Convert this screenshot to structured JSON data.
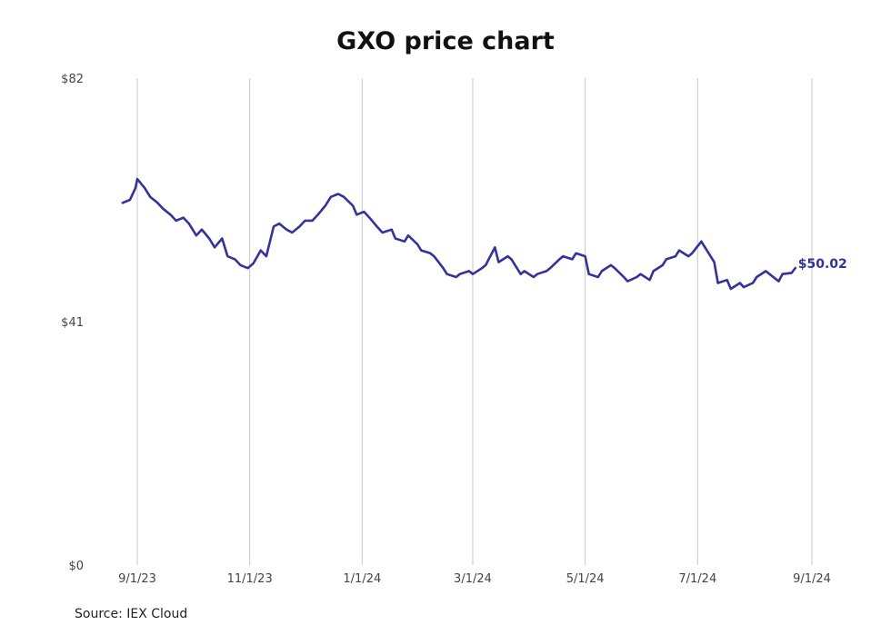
{
  "chart_data": {
    "type": "line",
    "title": "GXO price chart",
    "source": "Source: IEX Cloud",
    "ylim": [
      0,
      82
    ],
    "y_ticks": [
      {
        "value": 82,
        "label": "$82"
      },
      {
        "value": 41,
        "label": "$41"
      },
      {
        "value": 0,
        "label": "$0"
      }
    ],
    "x_ticks": [
      {
        "date": "2023-09-01",
        "label": "9/1/23"
      },
      {
        "date": "2023-11-01",
        "label": "11/1/23"
      },
      {
        "date": "2024-01-01",
        "label": "1/1/24"
      },
      {
        "date": "2024-03-01",
        "label": "3/1/24"
      },
      {
        "date": "2024-05-01",
        "label": "5/1/24"
      },
      {
        "date": "2024-07-01",
        "label": "7/1/24"
      },
      {
        "date": "2024-09-01",
        "label": "9/1/24"
      }
    ],
    "xlim": [
      "2023-08-21",
      "2024-09-15"
    ],
    "grid": "vertical",
    "last_label": "$50.02",
    "line_color": "#333399",
    "series": [
      {
        "x": [
          "2023-08-24",
          "2023-08-28",
          "2023-08-31",
          "2023-09-01",
          "2023-09-05",
          "2023-09-08",
          "2023-09-12",
          "2023-09-15",
          "2023-09-19",
          "2023-09-22",
          "2023-09-26",
          "2023-09-29",
          "2023-10-03",
          "2023-10-06",
          "2023-10-10",
          "2023-10-13",
          "2023-10-17",
          "2023-10-20",
          "2023-10-24",
          "2023-10-27",
          "2023-10-31",
          "2023-11-03",
          "2023-11-07",
          "2023-11-10",
          "2023-11-14",
          "2023-11-17",
          "2023-11-21",
          "2023-11-24",
          "2023-11-28",
          "2023-12-01",
          "2023-12-05",
          "2023-12-08",
          "2023-12-12",
          "2023-12-15",
          "2023-12-19",
          "2023-12-22",
          "2023-12-27",
          "2023-12-29",
          "2024-01-02",
          "2024-01-05",
          "2024-01-09",
          "2024-01-12",
          "2024-01-17",
          "2024-01-19",
          "2024-01-24",
          "2024-01-26",
          "2024-01-31",
          "2024-02-02",
          "2024-02-07",
          "2024-02-09",
          "2024-02-14",
          "2024-02-16",
          "2024-02-21",
          "2024-02-23",
          "2024-02-28",
          "2024-03-01",
          "2024-03-06",
          "2024-03-08",
          "2024-03-13",
          "2024-03-15",
          "2024-03-20",
          "2024-03-22",
          "2024-03-27",
          "2024-03-29",
          "2024-04-03",
          "2024-04-05",
          "2024-04-10",
          "2024-04-12",
          "2024-04-17",
          "2024-04-19",
          "2024-04-24",
          "2024-04-26",
          "2024-05-01",
          "2024-05-03",
          "2024-05-08",
          "2024-05-10",
          "2024-05-15",
          "2024-05-17",
          "2024-05-22",
          "2024-05-24",
          "2024-05-29",
          "2024-05-31",
          "2024-06-05",
          "2024-06-07",
          "2024-06-12",
          "2024-06-14",
          "2024-06-19",
          "2024-06-21",
          "2024-06-26",
          "2024-06-28",
          "2024-07-03",
          "2024-07-05",
          "2024-07-10",
          "2024-07-12",
          "2024-07-17",
          "2024-07-19",
          "2024-07-24",
          "2024-07-26",
          "2024-07-31",
          "2024-08-02",
          "2024-08-07",
          "2024-08-09",
          "2024-08-14",
          "2024-08-16",
          "2024-08-21",
          "2024-08-23"
        ],
        "values": [
          61.0,
          61.5,
          63.5,
          65.0,
          63.5,
          62.0,
          61.0,
          60.0,
          59.0,
          58.0,
          58.5,
          57.5,
          55.5,
          56.5,
          55.0,
          53.5,
          55.0,
          52.0,
          51.5,
          50.5,
          50.0,
          50.8,
          53.0,
          52.0,
          57.0,
          57.5,
          56.5,
          56.0,
          57.0,
          58.0,
          58.0,
          59.0,
          60.5,
          62.0,
          62.5,
          62.0,
          60.5,
          59.0,
          59.5,
          58.5,
          57.0,
          56.0,
          56.5,
          55.0,
          54.5,
          55.5,
          54.0,
          53.0,
          52.5,
          52.0,
          50.0,
          49.0,
          48.5,
          49.0,
          49.5,
          49.0,
          50.0,
          50.5,
          53.5,
          51.0,
          52.0,
          51.5,
          49.0,
          49.5,
          48.5,
          49.0,
          49.5,
          50.0,
          51.5,
          52.0,
          51.5,
          52.5,
          52.0,
          49.0,
          48.5,
          49.5,
          50.5,
          50.0,
          48.5,
          47.8,
          48.5,
          49.0,
          48.0,
          49.5,
          50.5,
          51.5,
          52.0,
          53.0,
          52.0,
          52.5,
          54.5,
          53.5,
          51.0,
          47.5,
          48.0,
          46.5,
          47.5,
          46.8,
          47.5,
          48.5,
          49.5,
          49.0,
          47.8,
          49.0,
          49.2,
          50.02
        ]
      }
    ]
  }
}
